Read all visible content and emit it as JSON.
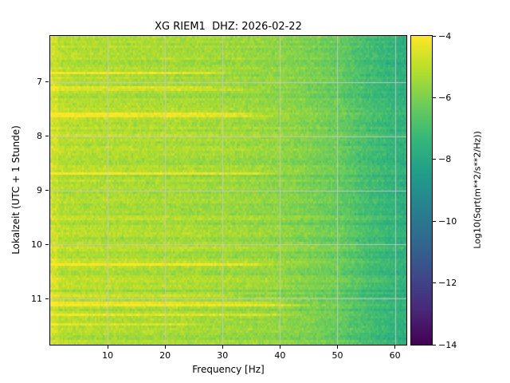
{
  "chart_data": {
    "type": "heatmap",
    "subtype": "spectrogram",
    "title": "XG RIEM1  DHZ: 2026-02-22",
    "xlabel": "Frequency [Hz]",
    "ylabel": "Lokalzeit (UTC + 1 Stunde)",
    "x_ticks": [
      10,
      20,
      30,
      40,
      50,
      60
    ],
    "y_ticks": [
      7,
      8,
      9,
      10,
      11
    ],
    "xlim": [
      0,
      62
    ],
    "ylim_time_hours": [
      6.15,
      11.85
    ],
    "y_axis_direction": "time-increases-downward",
    "grid": true,
    "grid_color": "#c8c8c8",
    "colormap": "viridis",
    "colorbar": {
      "label": "Log10(Sqrt(m**2/s**2/Hz))",
      "ticks": [
        -4,
        -6,
        -8,
        -10,
        -12,
        -14
      ],
      "vmin": -14,
      "vmax": -4
    },
    "mean_level_by_freq": [
      [
        0,
        -4.9
      ],
      [
        2,
        -5.1
      ],
      [
        5,
        -5.15
      ],
      [
        10,
        -5.2
      ],
      [
        15,
        -5.25
      ],
      [
        20,
        -5.3
      ],
      [
        25,
        -5.35
      ],
      [
        30,
        -5.45
      ],
      [
        35,
        -5.55
      ],
      [
        40,
        -5.7
      ],
      [
        45,
        -6.0
      ],
      [
        50,
        -6.35
      ],
      [
        55,
        -7.0
      ],
      [
        60,
        -7.5
      ],
      [
        62,
        -7.7
      ]
    ],
    "noise_std": 0.22,
    "row_noise_std": 0.15,
    "bright_streak_row_fraction": 0.09,
    "low_freq_boost": 0.25
  }
}
